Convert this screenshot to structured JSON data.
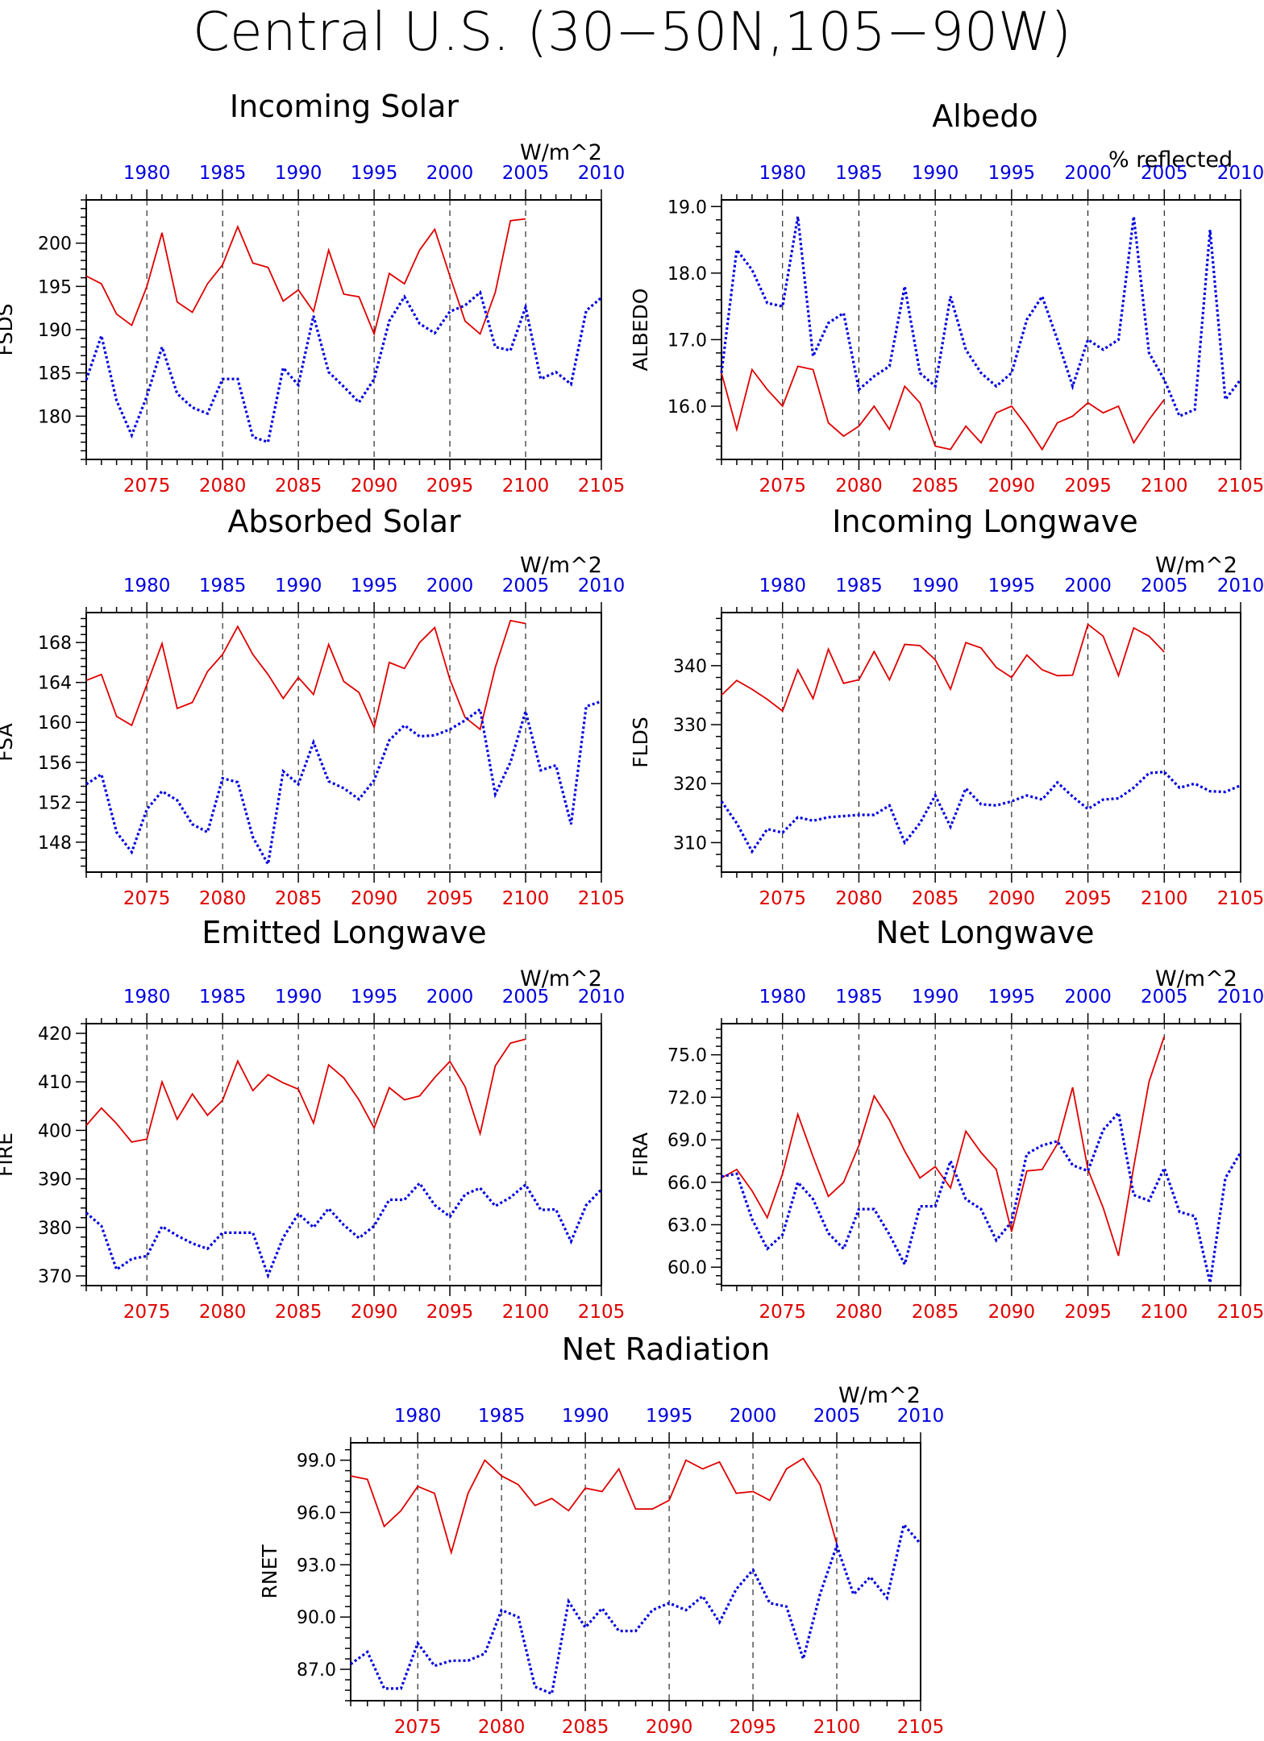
{
  "figure_title": "Central U.S. (30−50N,105−90W)",
  "colors": {
    "future_series": "#e00000",
    "historical_series": "#0000e0",
    "axis": "#000000"
  },
  "chart_data": [
    {
      "type": "line",
      "title": "Incoming Solar",
      "units": "W/m^2",
      "ylabel": "FSDS",
      "ylim": [
        175,
        205
      ],
      "yticks": [
        "180",
        "185",
        "190",
        "195",
        "200"
      ],
      "grid": "vertical-dashed-every-5-years",
      "x_bottom": {
        "ticks": [
          "2075",
          "2080",
          "2085",
          "2090",
          "2095",
          "2100",
          "2105"
        ],
        "range": [
          2071,
          2105
        ]
      },
      "x_top": {
        "ticks": [
          "1980",
          "1985",
          "1990",
          "1995",
          "2000",
          "2005",
          "2010"
        ],
        "range": [
          1976,
          2010
        ]
      },
      "series": [
        {
          "x_axis": "bottom",
          "style": "solid",
          "x_start": 2071,
          "values": [
            196.2,
            195.3,
            191.8,
            190.5,
            195.0,
            201.2,
            193.2,
            192.0,
            195.3,
            197.5,
            201.9,
            197.7,
            197.2,
            193.3,
            194.6,
            192.1,
            199.2,
            194.1,
            193.8,
            189.5,
            196.5,
            195.3,
            199.2,
            201.6,
            196.2,
            191.0,
            189.5,
            194.3,
            202.6,
            202.8
          ]
        },
        {
          "x_axis": "top",
          "style": "dotted",
          "x_start": 1976,
          "values": [
            184.2,
            189.3,
            181.8,
            177.8,
            182.3,
            188.0,
            182.6,
            181.0,
            180.3,
            184.3,
            184.3,
            177.6,
            177.0,
            185.6,
            183.6,
            191.6,
            185.1,
            183.4,
            181.6,
            184.3,
            191.0,
            193.8,
            190.7,
            189.6,
            192.1,
            192.8,
            194.3,
            188.0,
            187.6,
            192.6,
            184.3,
            185.1,
            183.7,
            192.2,
            193.7
          ]
        }
      ]
    },
    {
      "type": "line",
      "title": "Albedo",
      "units": "% reflected",
      "ylabel": "ALBEDO",
      "ylim": [
        15.2,
        19.1
      ],
      "yticks": [
        "16.0",
        "17.0",
        "18.0",
        "19.0"
      ],
      "grid": "vertical-dashed-every-5-years",
      "x_bottom": {
        "ticks": [
          "2075",
          "2080",
          "2085",
          "2090",
          "2095",
          "2100",
          "2105"
        ],
        "range": [
          2071,
          2105
        ]
      },
      "x_top": {
        "ticks": [
          "1980",
          "1985",
          "1990",
          "1995",
          "2000",
          "2005",
          "2010"
        ],
        "range": [
          1976,
          2010
        ]
      },
      "series": [
        {
          "x_axis": "bottom",
          "style": "solid",
          "x_start": 2071,
          "values": [
            16.5,
            15.65,
            16.55,
            16.25,
            16.0,
            16.6,
            16.55,
            15.75,
            15.55,
            15.7,
            16.0,
            15.65,
            16.3,
            16.05,
            15.4,
            15.35,
            15.7,
            15.45,
            15.9,
            16.0,
            15.7,
            15.35,
            15.75,
            15.85,
            16.05,
            15.9,
            16.0,
            15.45,
            15.8,
            16.1
          ]
        },
        {
          "x_axis": "top",
          "style": "dotted",
          "x_start": 1976,
          "values": [
            16.5,
            18.35,
            18.05,
            17.55,
            17.5,
            18.85,
            16.75,
            17.25,
            17.4,
            16.25,
            16.45,
            16.6,
            17.8,
            16.5,
            16.3,
            17.65,
            16.85,
            16.5,
            16.3,
            16.5,
            17.3,
            17.65,
            17.0,
            16.3,
            17.0,
            16.85,
            17.0,
            18.85,
            16.8,
            16.4,
            15.85,
            15.95,
            18.65,
            16.1,
            16.4
          ]
        }
      ]
    },
    {
      "type": "line",
      "title": "Absorbed Solar",
      "units": "W/m^2",
      "ylabel": "FSA",
      "ylim": [
        145,
        171
      ],
      "yticks": [
        "148",
        "152",
        "156",
        "160",
        "164",
        "168"
      ],
      "grid": "vertical-dashed-every-5-years",
      "x_bottom": {
        "ticks": [
          "2075",
          "2080",
          "2085",
          "2090",
          "2095",
          "2100",
          "2105"
        ],
        "range": [
          2071,
          2105
        ]
      },
      "x_top": {
        "ticks": [
          "1980",
          "1985",
          "1990",
          "1995",
          "2000",
          "2005",
          "2010"
        ],
        "range": [
          1976,
          2010
        ]
      },
      "series": [
        {
          "x_axis": "bottom",
          "style": "solid",
          "x_start": 2071,
          "values": [
            164.2,
            164.8,
            160.6,
            159.7,
            163.8,
            167.9,
            161.4,
            162.0,
            165.1,
            166.8,
            169.6,
            166.8,
            164.8,
            162.4,
            164.5,
            162.8,
            167.8,
            164.1,
            163.0,
            159.5,
            166.0,
            165.4,
            168.0,
            169.5,
            164.3,
            160.5,
            159.3,
            165.5,
            170.2,
            169.9
          ]
        },
        {
          "x_axis": "top",
          "style": "dotted",
          "x_start": 1976,
          "values": [
            153.8,
            154.8,
            149.0,
            147.0,
            151.3,
            153.1,
            152.2,
            149.8,
            149.0,
            154.4,
            154.0,
            148.5,
            145.8,
            155.1,
            153.8,
            158.0,
            154.1,
            153.4,
            152.3,
            154.2,
            158.2,
            159.7,
            158.6,
            158.7,
            159.3,
            160.2,
            161.3,
            152.8,
            156.0,
            161.1,
            155.2,
            155.7,
            149.8,
            161.6,
            162.1
          ]
        }
      ]
    },
    {
      "type": "line",
      "title": "Incoming Longwave",
      "units": "W/m^2",
      "ylabel": "FLDS",
      "ylim": [
        305,
        349
      ],
      "yticks": [
        "310",
        "320",
        "330",
        "340"
      ],
      "grid": "vertical-dashed-every-5-years",
      "x_bottom": {
        "ticks": [
          "2075",
          "2080",
          "2085",
          "2090",
          "2095",
          "2100",
          "2105"
        ],
        "range": [
          2071,
          2105
        ]
      },
      "x_top": {
        "ticks": [
          "1980",
          "1985",
          "1990",
          "1995",
          "2000",
          "2005",
          "2010"
        ],
        "range": [
          1976,
          2010
        ]
      },
      "series": [
        {
          "x_axis": "bottom",
          "style": "solid",
          "x_start": 2071,
          "values": [
            335.0,
            337.5,
            336.0,
            334.3,
            332.3,
            339.3,
            334.4,
            342.8,
            337.0,
            337.6,
            342.4,
            337.6,
            343.6,
            343.4,
            341.0,
            336.0,
            343.9,
            343.0,
            339.7,
            338.0,
            341.8,
            339.3,
            338.3,
            338.4,
            347.0,
            345.0,
            338.3,
            346.4,
            345.0,
            342.3
          ]
        },
        {
          "x_axis": "top",
          "style": "dotted",
          "x_start": 1976,
          "values": [
            317.0,
            313.3,
            308.5,
            312.3,
            311.7,
            314.3,
            313.7,
            314.3,
            314.5,
            314.7,
            314.7,
            316.3,
            310.0,
            313.3,
            318.0,
            312.7,
            319.2,
            316.5,
            316.3,
            317.0,
            318.0,
            317.3,
            320.2,
            317.8,
            315.7,
            317.3,
            317.5,
            319.3,
            321.8,
            322.0,
            319.3,
            320.0,
            318.7,
            318.6,
            319.7
          ]
        }
      ]
    },
    {
      "type": "line",
      "title": "Emitted Longwave",
      "units": "W/m^2",
      "ylabel": "FIRE",
      "ylim": [
        368,
        422
      ],
      "yticks": [
        "370",
        "380",
        "390",
        "400",
        "410",
        "420"
      ],
      "grid": "vertical-dashed-every-5-years",
      "x_bottom": {
        "ticks": [
          "2075",
          "2080",
          "2085",
          "2090",
          "2095",
          "2100",
          "2105"
        ],
        "range": [
          2071,
          2105
        ]
      },
      "x_top": {
        "ticks": [
          "1980",
          "1985",
          "1990",
          "1995",
          "2000",
          "2005",
          "2010"
        ],
        "range": [
          1976,
          2010
        ]
      },
      "series": [
        {
          "x_axis": "bottom",
          "style": "solid",
          "x_start": 2071,
          "values": [
            401.0,
            404.6,
            401.4,
            397.6,
            398.2,
            410.0,
            402.3,
            407.5,
            403.1,
            406.2,
            414.3,
            408.2,
            411.5,
            409.8,
            408.5,
            401.5,
            413.5,
            410.8,
            406.3,
            400.5,
            408.8,
            406.3,
            407.1,
            410.9,
            414.2,
            409.0,
            399.3,
            413.3,
            418.0,
            418.8
          ]
        },
        {
          "x_axis": "top",
          "style": "dotted",
          "x_start": 1976,
          "values": [
            383.0,
            380.3,
            371.3,
            373.5,
            374.1,
            380.2,
            378.3,
            376.7,
            375.6,
            378.9,
            378.9,
            378.9,
            370.1,
            377.9,
            382.8,
            380.0,
            383.9,
            380.5,
            377.8,
            380.3,
            385.7,
            385.7,
            389.1,
            384.6,
            382.2,
            386.8,
            388.1,
            384.4,
            386.2,
            388.8,
            383.6,
            383.7,
            377.1,
            384.6,
            387.8
          ]
        }
      ]
    },
    {
      "type": "line",
      "title": "Net Longwave",
      "units": "W/m^2",
      "ylabel": "FIRA",
      "ylim": [
        58.7,
        77.2
      ],
      "yticks": [
        "60.0",
        "63.0",
        "66.0",
        "69.0",
        "72.0",
        "75.0"
      ],
      "grid": "vertical-dashed-every-5-years",
      "x_bottom": {
        "ticks": [
          "2075",
          "2080",
          "2085",
          "2090",
          "2095",
          "2100",
          "2105"
        ],
        "range": [
          2071,
          2105
        ]
      },
      "x_top": {
        "ticks": [
          "1980",
          "1985",
          "1990",
          "1995",
          "2000",
          "2005",
          "2010"
        ],
        "range": [
          1976,
          2010
        ]
      },
      "series": [
        {
          "x_axis": "bottom",
          "style": "solid",
          "x_start": 2071,
          "values": [
            66.3,
            66.9,
            65.4,
            63.5,
            66.6,
            70.8,
            67.8,
            65.0,
            66.0,
            68.6,
            72.1,
            70.4,
            68.2,
            66.3,
            67.1,
            65.6,
            69.6,
            68.1,
            66.9,
            62.5,
            66.8,
            66.9,
            68.7,
            72.7,
            66.9,
            64.2,
            60.8,
            67.1,
            73.1,
            76.3
          ]
        },
        {
          "x_axis": "top",
          "style": "dotted",
          "x_start": 1976,
          "values": [
            66.4,
            66.6,
            63.4,
            61.3,
            62.3,
            66.0,
            64.8,
            62.4,
            61.3,
            64.1,
            64.1,
            62.3,
            60.2,
            64.3,
            64.3,
            67.5,
            64.8,
            64.1,
            61.9,
            63.2,
            68.0,
            68.6,
            68.9,
            67.2,
            66.8,
            69.7,
            70.9,
            65.1,
            64.7,
            67.0,
            63.9,
            63.6,
            58.9,
            66.3,
            68.1
          ]
        }
      ]
    },
    {
      "type": "line",
      "title": "Net Radiation",
      "units": "W/m^2",
      "ylabel": "RNET",
      "ylim": [
        85.2,
        100.0
      ],
      "yticks": [
        "87.0",
        "90.0",
        "93.0",
        "96.0",
        "99.0"
      ],
      "grid": "vertical-dashed-every-5-years",
      "x_bottom": {
        "ticks": [
          "2075",
          "2080",
          "2085",
          "2090",
          "2095",
          "2100",
          "2105"
        ],
        "range": [
          2071,
          2105
        ]
      },
      "x_top": {
        "ticks": [
          "1980",
          "1985",
          "1990",
          "1995",
          "2000",
          "2005",
          "2010"
        ],
        "range": [
          1976,
          2010
        ]
      },
      "series": [
        {
          "x_axis": "bottom",
          "style": "solid",
          "x_start": 2071,
          "values": [
            98.1,
            97.9,
            95.2,
            96.1,
            97.5,
            97.1,
            93.7,
            97.1,
            99.0,
            98.1,
            97.6,
            96.4,
            96.8,
            96.1,
            97.4,
            97.2,
            98.5,
            96.2,
            96.2,
            96.7,
            99.0,
            98.5,
            98.9,
            97.1,
            97.2,
            96.7,
            98.5,
            99.1,
            97.6,
            94.2
          ]
        },
        {
          "x_axis": "top",
          "style": "dotted",
          "x_start": 1976,
          "values": [
            87.3,
            88.0,
            85.9,
            85.9,
            88.5,
            87.2,
            87.5,
            87.5,
            87.9,
            90.4,
            90.0,
            86.0,
            85.6,
            90.9,
            89.4,
            90.5,
            89.2,
            89.2,
            90.4,
            90.8,
            90.4,
            91.2,
            89.7,
            91.6,
            92.7,
            90.8,
            90.6,
            87.6,
            91.3,
            94.1,
            91.3,
            92.3,
            91.1,
            95.3,
            94.2
          ]
        }
      ]
    }
  ]
}
